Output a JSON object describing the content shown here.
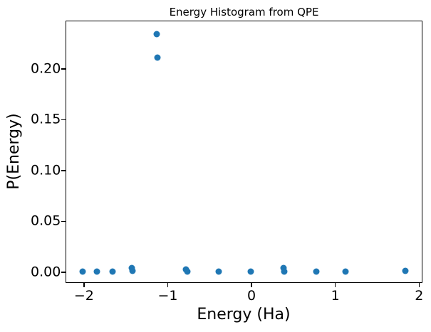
{
  "figure": {
    "background": "#ffffff",
    "spine_color": "#000000"
  },
  "chart_data": {
    "type": "scatter",
    "title": "Energy Histogram from QPE",
    "xlabel": "Energy (Ha)",
    "ylabel": "P(Energy)",
    "xlim": [
      -2.22,
      2.04
    ],
    "ylim": [
      -0.0105,
      0.2475
    ],
    "x_ticks": [
      -2,
      -1,
      0,
      1,
      2
    ],
    "x_tick_labels": [
      "−2",
      "−1",
      "0",
      "1",
      "2"
    ],
    "y_ticks": [
      0.0,
      0.05,
      0.1,
      0.15,
      0.2
    ],
    "y_tick_labels": [
      "0.00",
      "0.05",
      "0.10",
      "0.15",
      "0.20"
    ],
    "grid": false,
    "legend": null,
    "marker_color": "#1f77b4",
    "points": [
      {
        "x": -2.02,
        "y": 0.0005
      },
      {
        "x": -1.85,
        "y": 0.0005
      },
      {
        "x": -1.66,
        "y": 0.001
      },
      {
        "x": -1.43,
        "y": 0.0045
      },
      {
        "x": -1.42,
        "y": 0.0015
      },
      {
        "x": -1.13,
        "y": 0.234
      },
      {
        "x": -1.12,
        "y": 0.211
      },
      {
        "x": -0.78,
        "y": 0.0025
      },
      {
        "x": -0.77,
        "y": 0.0005
      },
      {
        "x": -0.39,
        "y": 0.0005
      },
      {
        "x": -0.01,
        "y": 0.0005
      },
      {
        "x": 0.38,
        "y": 0.0045
      },
      {
        "x": 0.39,
        "y": 0.001
      },
      {
        "x": 0.77,
        "y": 0.001
      },
      {
        "x": 1.12,
        "y": 0.0005
      },
      {
        "x": 1.84,
        "y": 0.0015
      }
    ]
  }
}
